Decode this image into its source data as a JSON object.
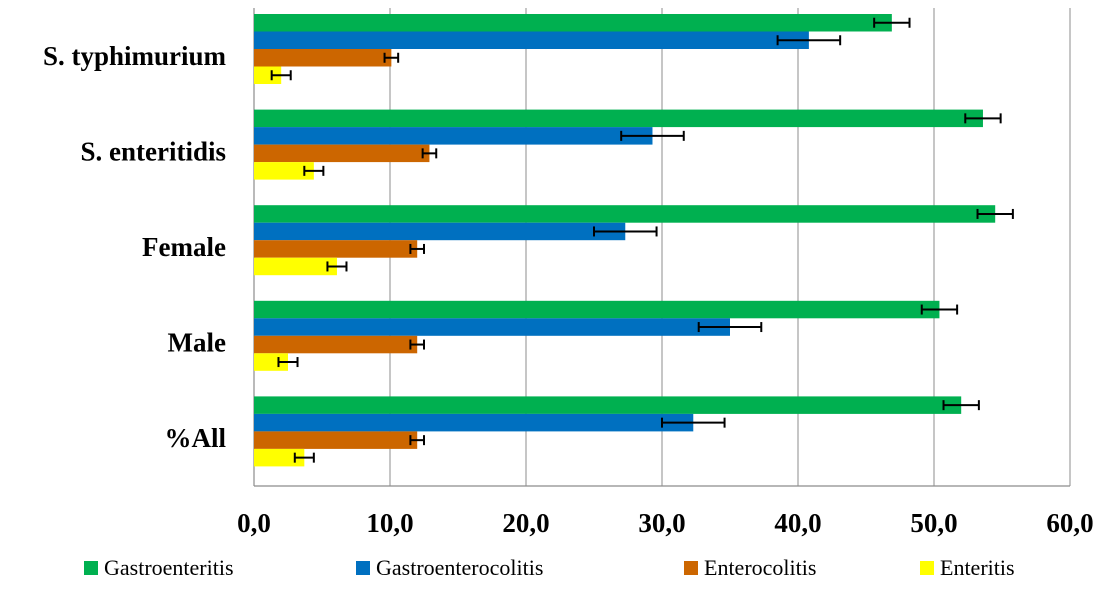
{
  "chart_data": {
    "type": "bar",
    "orientation": "horizontal",
    "categories": [
      "S. typhimurium",
      "S. enteritidis",
      "Female",
      "Male",
      "%All"
    ],
    "series": [
      {
        "name": "Gastroenteritis",
        "color": "#00B050",
        "values": [
          46.9,
          53.6,
          54.5,
          50.4,
          52.0
        ],
        "errors": [
          1.3,
          1.3,
          1.3,
          1.3,
          1.3
        ]
      },
      {
        "name": "Gastroenterocolitis",
        "color": "#0070C0",
        "values": [
          40.8,
          29.3,
          27.3,
          35.0,
          32.3
        ],
        "errors": [
          2.3,
          2.3,
          2.3,
          2.3,
          2.3
        ]
      },
      {
        "name": "Enterocolitis",
        "color": "#CC6600",
        "values": [
          10.1,
          12.9,
          12.0,
          12.0,
          12.0
        ],
        "errors": [
          0.5,
          0.5,
          0.5,
          0.5,
          0.5
        ]
      },
      {
        "name": "Enteritis",
        "color": "#FFFF00",
        "values": [
          2.0,
          4.4,
          6.1,
          2.5,
          3.7
        ],
        "errors": [
          0.7,
          0.7,
          0.7,
          0.7,
          0.7
        ]
      }
    ],
    "xlim": [
      0,
      60
    ],
    "xticks": [
      "0,0",
      "10,0",
      "20,0",
      "30,0",
      "40,0",
      "50,0",
      "60,0"
    ],
    "grid": true,
    "legend_position": "bottom"
  }
}
